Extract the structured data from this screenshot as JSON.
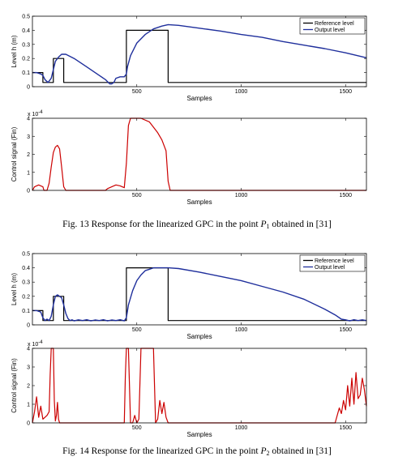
{
  "colors": {
    "reference": "#000000",
    "output": "#1f2f9c",
    "control": "#cc0000"
  },
  "figures": [
    {
      "caption_prefix": "Fig. 13 Response for the linearized GPC in the point ",
      "caption_var": "P",
      "caption_sub": "1",
      "caption_suffix": " obtained in [31]"
    },
    {
      "caption_prefix": "Fig. 14 Response for the linearized GPC in the point ",
      "caption_var": "P",
      "caption_sub": "2",
      "caption_suffix": " obtained in [31]"
    }
  ],
  "chart_data": [
    {
      "type": "line",
      "xlabel": "Samples",
      "ylabel": "Level h (m)",
      "xlim": [
        0,
        1600
      ],
      "ylim": [
        0,
        0.5
      ],
      "xticks": [
        500,
        1000,
        1500
      ],
      "yticks": [
        0,
        0.1,
        0.2,
        0.3,
        0.4,
        0.5
      ],
      "legend": {
        "placement": "top-right",
        "entries": [
          "Reference level",
          "Output level"
        ]
      },
      "series": [
        {
          "name": "Reference level",
          "color": "#000000",
          "x": [
            0,
            50,
            50,
            100,
            100,
            150,
            150,
            450,
            450,
            650,
            650,
            1600
          ],
          "y": [
            0.1,
            0.1,
            0.03,
            0.03,
            0.2,
            0.2,
            0.03,
            0.03,
            0.4,
            0.4,
            0.03,
            0.03
          ]
        },
        {
          "name": "Output level",
          "color": "#1f2f9c",
          "x": [
            0,
            20,
            40,
            50,
            60,
            75,
            90,
            100,
            110,
            125,
            140,
            160,
            200,
            260,
            320,
            350,
            370,
            380,
            390,
            400,
            420,
            440,
            450,
            455,
            470,
            500,
            540,
            580,
            620,
            650,
            700,
            800,
            900,
            1000,
            1100,
            1200,
            1300,
            1400,
            1500,
            1600
          ],
          "y": [
            0.1,
            0.1,
            0.09,
            0.08,
            0.05,
            0.03,
            0.06,
            0.12,
            0.18,
            0.21,
            0.23,
            0.23,
            0.2,
            0.14,
            0.08,
            0.05,
            0.02,
            0.02,
            0.03,
            0.06,
            0.07,
            0.07,
            0.09,
            0.14,
            0.22,
            0.31,
            0.37,
            0.41,
            0.43,
            0.44,
            0.435,
            0.415,
            0.395,
            0.37,
            0.35,
            0.32,
            0.295,
            0.27,
            0.24,
            0.205
          ]
        }
      ]
    },
    {
      "type": "line",
      "xlabel": "Samples",
      "ylabel": "Control signal (Fin)",
      "y_scale_label": "x 10",
      "y_scale_exp": "-4",
      "xlim": [
        0,
        1600
      ],
      "ylim": [
        0,
        4
      ],
      "xticks": [
        500,
        1000,
        1500
      ],
      "yticks": [
        0,
        1,
        2,
        3,
        4
      ],
      "series": [
        {
          "name": "",
          "color": "#cc0000",
          "x": [
            0,
            10,
            30,
            50,
            55,
            70,
            80,
            90,
            100,
            110,
            120,
            130,
            140,
            150,
            160,
            170,
            350,
            360,
            380,
            400,
            420,
            440,
            450,
            460,
            470,
            480,
            490,
            520,
            560,
            600,
            620,
            640,
            650,
            660,
            700,
            1600
          ],
          "y": [
            0,
            0.2,
            0.3,
            0.2,
            0,
            0,
            0.4,
            1.3,
            2.1,
            2.4,
            2.5,
            2.3,
            1.3,
            0.2,
            0,
            0,
            0,
            0.1,
            0.2,
            0.3,
            0.25,
            0.15,
            1.5,
            3.6,
            4,
            4,
            4,
            4,
            3.8,
            3.2,
            2.8,
            2.2,
            0.5,
            0,
            0,
            0
          ]
        }
      ]
    },
    {
      "type": "line",
      "xlabel": "Samples",
      "ylabel": "Level h (m)",
      "xlim": [
        0,
        1600
      ],
      "ylim": [
        0,
        0.5
      ],
      "xticks": [
        500,
        1000,
        1500
      ],
      "yticks": [
        0,
        0.1,
        0.2,
        0.3,
        0.4,
        0.5
      ],
      "legend": {
        "placement": "top-right",
        "entries": [
          "Reference level",
          "Output level"
        ]
      },
      "series": [
        {
          "name": "Reference level",
          "color": "#000000",
          "x": [
            0,
            50,
            50,
            100,
            100,
            150,
            150,
            450,
            450,
            650,
            650,
            1600
          ],
          "y": [
            0.1,
            0.1,
            0.03,
            0.03,
            0.2,
            0.2,
            0.03,
            0.03,
            0.4,
            0.4,
            0.03,
            0.03
          ]
        },
        {
          "name": "Output level",
          "color": "#1f2f9c",
          "x": [
            0,
            20,
            40,
            50,
            60,
            70,
            80,
            90,
            100,
            110,
            120,
            130,
            140,
            150,
            160,
            170,
            180,
            190,
            200,
            220,
            240,
            260,
            280,
            300,
            320,
            340,
            360,
            380,
            400,
            420,
            440,
            450,
            460,
            480,
            500,
            520,
            540,
            560,
            580,
            600,
            650,
            700,
            800,
            900,
            1000,
            1100,
            1200,
            1300,
            1400,
            1450,
            1480,
            1500,
            1520,
            1540,
            1560,
            1580,
            1600
          ],
          "y": [
            0.1,
            0.1,
            0.09,
            0.05,
            0.03,
            0.04,
            0.03,
            0.06,
            0.14,
            0.2,
            0.21,
            0.2,
            0.19,
            0.14,
            0.08,
            0.045,
            0.03,
            0.035,
            0.028,
            0.035,
            0.03,
            0.036,
            0.028,
            0.034,
            0.03,
            0.036,
            0.028,
            0.034,
            0.03,
            0.036,
            0.028,
            0.05,
            0.14,
            0.24,
            0.31,
            0.35,
            0.38,
            0.39,
            0.4,
            0.4,
            0.4,
            0.395,
            0.37,
            0.34,
            0.31,
            0.27,
            0.23,
            0.18,
            0.11,
            0.07,
            0.04,
            0.035,
            0.028,
            0.036,
            0.03,
            0.035,
            0.03
          ]
        }
      ]
    },
    {
      "type": "line",
      "xlabel": "Samples",
      "ylabel": "Control signal (Fin)",
      "y_scale_label": "x 10",
      "y_scale_exp": "-4",
      "xlim": [
        0,
        1600
      ],
      "ylim": [
        0,
        4
      ],
      "xticks": [
        500,
        1000,
        1500
      ],
      "yticks": [
        0,
        1,
        2,
        3,
        4
      ],
      "series": [
        {
          "name": "",
          "color": "#cc0000",
          "x": [
            0,
            10,
            20,
            30,
            40,
            50,
            60,
            70,
            80,
            85,
            90,
            95,
            100,
            105,
            110,
            115,
            120,
            125,
            130,
            140,
            150,
            160,
            170,
            180,
            440,
            445,
            450,
            455,
            460,
            470,
            480,
            490,
            500,
            510,
            520,
            540,
            560,
            580,
            590,
            600,
            610,
            620,
            630,
            640,
            650,
            660,
            1450,
            1470,
            1480,
            1490,
            1500,
            1510,
            1520,
            1530,
            1540,
            1550,
            1560,
            1570,
            1580,
            1590,
            1600
          ],
          "y": [
            0,
            0.6,
            1.4,
            0.3,
            0.9,
            0.2,
            0.3,
            0.4,
            0.6,
            2.6,
            4,
            4,
            4,
            1.2,
            0.1,
            0.4,
            1.1,
            0.2,
            0,
            0,
            0,
            0,
            0,
            0,
            0,
            2.5,
            4,
            4,
            4,
            0,
            0,
            0.4,
            0,
            0.2,
            4,
            4,
            4,
            4,
            0,
            0.2,
            1.2,
            0.5,
            1.1,
            0.3,
            0,
            0,
            0,
            0.8,
            0.5,
            1.2,
            0.7,
            2.0,
            0.9,
            2.4,
            1.0,
            2.7,
            1.3,
            1.5,
            2.4,
            1.8,
            0.9
          ]
        }
      ]
    }
  ]
}
